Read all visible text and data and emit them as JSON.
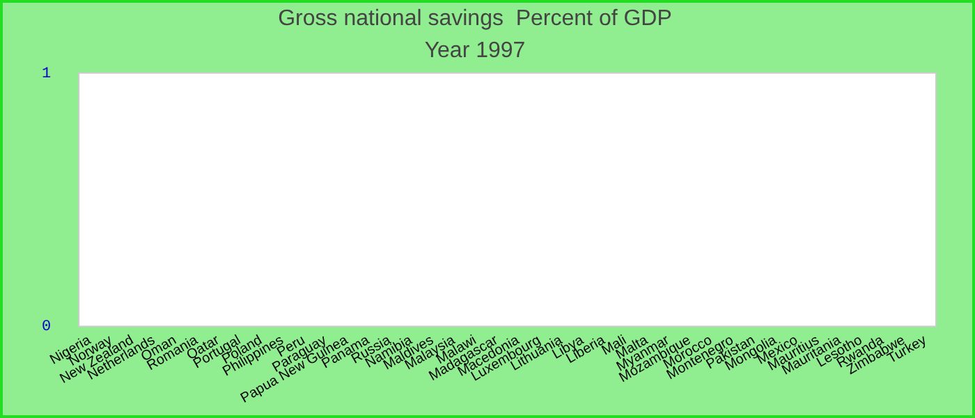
{
  "chart_data": {
    "type": "bar",
    "title": "Gross national savings  Percent of GDP",
    "subtitle": "Year 1997",
    "categories": [
      "Nigeria",
      "Norway",
      "New Zealand",
      "Netherlands",
      "Oman",
      "Romania",
      "Qatar",
      "Portugal",
      "Poland",
      "Philippines",
      "Peru",
      "Paraguay",
      "Papua New Guinea",
      "Panama",
      "Russia",
      "Namibia",
      "Maldives",
      "Malaysia",
      "Malawi",
      "Madagascar",
      "Macedonia",
      "Luxembourg",
      "Lithuania",
      "Libya",
      "Liberia",
      "Mali",
      "Malta",
      "Myanmar",
      "Mozambique",
      "Morocco",
      "Montenegro",
      "Pakistan",
      "Mongolia",
      "Mexico",
      "Mauritius",
      "Mauritania",
      "Lesotho",
      "Rwanda",
      "Zimbabwe",
      "Turkey"
    ],
    "values": [
      null,
      null,
      null,
      null,
      null,
      null,
      null,
      null,
      null,
      null,
      null,
      null,
      null,
      null,
      null,
      null,
      null,
      null,
      null,
      null,
      null,
      null,
      null,
      null,
      null,
      null,
      null,
      null,
      null,
      null,
      null,
      null,
      null,
      null,
      null,
      null,
      null,
      null,
      null,
      null
    ],
    "ylim": [
      0,
      1
    ],
    "yticks": [
      0,
      1
    ],
    "grid": false,
    "legend": false
  }
}
